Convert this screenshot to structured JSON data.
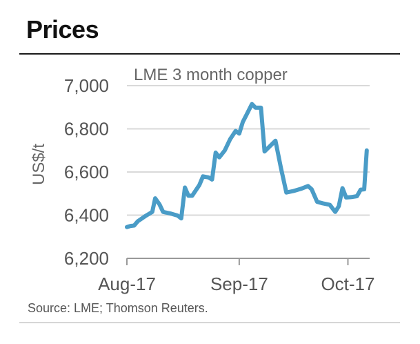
{
  "heading": "Prices",
  "source": "Source: LME; Thomson Reuters.",
  "colors": {
    "line": "#4a9cc7",
    "grid": "#d9d9d9",
    "axis": "#999999"
  },
  "chart_data": {
    "type": "line",
    "title": "LME 3 month copper",
    "xlabel": "",
    "ylabel": "US$/t",
    "ylim": [
      6200,
      7000
    ],
    "yticks": [
      7000,
      6800,
      6600,
      6400,
      6200
    ],
    "ytick_labels": [
      "7,000",
      "6,800",
      "6,600",
      "6,400",
      "6,200"
    ],
    "xticks": [
      {
        "x": 0,
        "label": "Aug-17"
      },
      {
        "x": 31,
        "label": "Sep-17"
      },
      {
        "x": 61,
        "label": "Oct-17"
      }
    ],
    "xlim": [
      0,
      67
    ],
    "series": [
      {
        "name": "LME 3 month copper",
        "points": [
          [
            0,
            6345
          ],
          [
            1,
            6350
          ],
          [
            2,
            6352
          ],
          [
            3,
            6372
          ],
          [
            5,
            6395
          ],
          [
            7,
            6415
          ],
          [
            7.8,
            6478
          ],
          [
            9,
            6450
          ],
          [
            10,
            6415
          ],
          [
            12,
            6408
          ],
          [
            14,
            6398
          ],
          [
            15,
            6385
          ],
          [
            16,
            6528
          ],
          [
            17,
            6490
          ],
          [
            18,
            6490
          ],
          [
            20,
            6540
          ],
          [
            21,
            6580
          ],
          [
            22.5,
            6575
          ],
          [
            23.5,
            6565
          ],
          [
            24.5,
            6690
          ],
          [
            25.5,
            6668
          ],
          [
            27,
            6700
          ],
          [
            28.5,
            6752
          ],
          [
            30,
            6790
          ],
          [
            31,
            6778
          ],
          [
            32,
            6832
          ],
          [
            33,
            6865
          ],
          [
            34.5,
            6915
          ],
          [
            35.5,
            6898
          ],
          [
            37,
            6898
          ],
          [
            38,
            6695
          ],
          [
            39.5,
            6720
          ],
          [
            41,
            6745
          ],
          [
            42.5,
            6620
          ],
          [
            44,
            6505
          ],
          [
            46,
            6512
          ],
          [
            48,
            6522
          ],
          [
            50,
            6535
          ],
          [
            51,
            6520
          ],
          [
            52.5,
            6462
          ],
          [
            54,
            6455
          ],
          [
            56,
            6448
          ],
          [
            57.5,
            6415
          ],
          [
            58.5,
            6442
          ],
          [
            59.5,
            6525
          ],
          [
            60.5,
            6482
          ],
          [
            62,
            6484
          ],
          [
            63.5,
            6488
          ],
          [
            64.5,
            6518
          ],
          [
            65.5,
            6520
          ],
          [
            66.2,
            6700
          ]
        ]
      }
    ]
  }
}
